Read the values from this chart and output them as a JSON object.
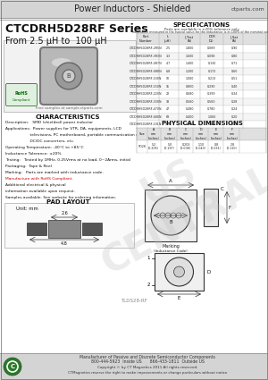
{
  "title_header": "Power Inductors - Shielded",
  "website": "ctparts.com",
  "series_title": "CTCDRH5D28RF Series",
  "series_subtitle": "From 2.5 μH to  100 μH",
  "bg_color": "#ffffff",
  "header_bg": "#e8e8e8",
  "border_color": "#999999",
  "characteristics_title": "CHARACTERISTICS",
  "char_lines": [
    "Description:   SMD (shielded) power inductor",
    "Applications:  Power supplies for VTR, DA, equipments, LCD",
    "                    televisions, PC motherboard, portable communication equipments,",
    "                    DC/DC converters, etc.",
    "Operating Temperature: -40°C to +85°C",
    "Inductance Tolerance: ±20%",
    "Testing:   Tested by 1MHz, 0.25Vrms at no load, 0~2Arms, initial",
    "Packaging:  Tape & Reel",
    "Marking:   Parts are marked with inductance code.",
    "Manufacture with RoHS Compliant.",
    "Additional electrical & physical",
    "information available upon request.",
    "Samples available. See website for ordering information."
  ],
  "rohs_line_index": 9,
  "pad_layout_title": "PAD LAYOUT",
  "pad_unit": "Unit: mm",
  "pad_dim1": "4.8",
  "pad_dim2": "2.6",
  "specs_title": "SPECIFICATIONS",
  "specs_note1": "Parts are available in ±20% tolerance only.",
  "specs_note2": "*Inductance measured in the typical value for the inductance is in 100% of the nominal value.",
  "specs_data": [
    [
      "CTCDRH5D28RF-2R5N",
      "2.5",
      "1.800",
      "0.089",
      "0.90"
    ],
    [
      "CTCDRH5D28RF-3R3N",
      "3.3",
      "1.600",
      "0.098",
      "0.80"
    ],
    [
      "CTCDRH5D28RF-4R7N",
      "4.7",
      "1.400",
      "0.130",
      "0.71"
    ],
    [
      "CTCDRH5D28RF-6R8N",
      "6.8",
      "1.200",
      "0.172",
      "0.60"
    ],
    [
      "CTCDRH5D28RF-100N",
      "10",
      "1.000",
      "0.213",
      "0.51"
    ],
    [
      "CTCDRH5D28RF-150N",
      "15",
      "0.800",
      "0.290",
      "0.40"
    ],
    [
      "CTCDRH5D28RF-220N",
      "22",
      "0.680",
      "0.399",
      "0.34"
    ],
    [
      "CTCDRH5D28RF-330N",
      "33",
      "0.560",
      "0.560",
      "0.28"
    ],
    [
      "CTCDRH5D28RF-470N",
      "47",
      "0.480",
      "0.780",
      "0.24"
    ],
    [
      "CTCDRH5D28RF-680N",
      "68",
      "0.400",
      "1.060",
      "0.20"
    ],
    [
      "CTCDRH5D28RF-101N",
      "100",
      "0.320",
      "1.600",
      "0.16"
    ]
  ],
  "phys_title": "PHYSICAL DIMENSIONS",
  "phys_cols": [
    "Size",
    "A\nmm\n(inches)",
    "B\nmm\n(inches)",
    "C\nmm\n(inches)",
    "D\nmm\n(inches)",
    "E\nmm\n(inches)",
    "F\nmm\n(inches)"
  ],
  "phys_row": [
    "5D28",
    "5.2\n(0.205)",
    "5.0\n(0.197)",
    "0.203\n(0.008)",
    "1.10\n(0.043)",
    "0.8\n(0.031)",
    "2.8\n(0.110)"
  ],
  "footer_company": "Manufacturer of Passive and Discrete Semiconductor Components",
  "footer_phone": "800-444-5923  Inside US      866-433-1811  Outside US",
  "footer_copyright": "Copyright © by CT Magnetics 2011 All rights reserved.",
  "footer_note": "CTMagnetics reserve the right to make improvements or change particulars without notice",
  "file_id": "TLDS28-RF"
}
